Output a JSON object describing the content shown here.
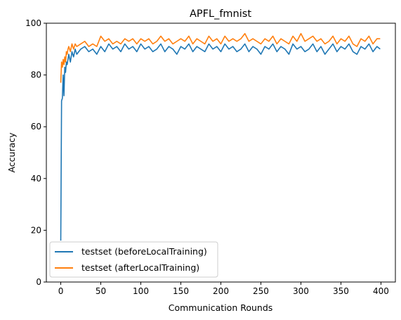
{
  "chart_data": {
    "type": "line",
    "title": "APFL_fmnist",
    "xlabel": "Communication Rounds",
    "ylabel": "Accuracy",
    "xlim": [
      -18,
      418
    ],
    "ylim": [
      0,
      100
    ],
    "x_ticks": [
      0,
      50,
      100,
      150,
      200,
      250,
      300,
      350,
      400
    ],
    "y_ticks": [
      0,
      20,
      40,
      60,
      80,
      100
    ],
    "grid": false,
    "legend_position": "lower-left",
    "series": [
      {
        "name": "testset (beforeLocalTraining)",
        "color": "#1f77b4",
        "x": [
          0,
          1,
          2,
          3,
          4,
          5,
          6,
          7,
          8,
          9,
          10,
          12,
          14,
          16,
          18,
          20,
          25,
          30,
          35,
          40,
          45,
          50,
          55,
          60,
          65,
          70,
          75,
          80,
          85,
          90,
          95,
          100,
          105,
          110,
          115,
          120,
          125,
          130,
          135,
          140,
          145,
          150,
          155,
          160,
          165,
          170,
          175,
          180,
          185,
          190,
          195,
          200,
          205,
          210,
          215,
          220,
          225,
          230,
          235,
          240,
          245,
          250,
          255,
          260,
          265,
          270,
          275,
          280,
          285,
          290,
          295,
          300,
          305,
          310,
          315,
          320,
          325,
          330,
          335,
          340,
          345,
          350,
          355,
          360,
          365,
          370,
          375,
          380,
          385,
          390,
          395,
          399
        ],
        "y": [
          16,
          70,
          71,
          80,
          72,
          83,
          81,
          85,
          84,
          86,
          88,
          85,
          89,
          87,
          90,
          88,
          90,
          91,
          89,
          90,
          88,
          91,
          89,
          92,
          90,
          91,
          89,
          92,
          90,
          91,
          89,
          92,
          90,
          91,
          89,
          90,
          92,
          89,
          91,
          90,
          88,
          91,
          90,
          92,
          89,
          91,
          90,
          89,
          92,
          90,
          91,
          89,
          92,
          90,
          91,
          89,
          90,
          92,
          89,
          91,
          90,
          88,
          91,
          90,
          92,
          89,
          91,
          90,
          88,
          92,
          90,
          91,
          89,
          90,
          92,
          89,
          91,
          88,
          90,
          92,
          89,
          91,
          90,
          92,
          89,
          88,
          91,
          90,
          92,
          89,
          91,
          90
        ]
      },
      {
        "name": "testset (afterLocalTraining)",
        "color": "#ff7f0e",
        "x": [
          0,
          1,
          2,
          3,
          4,
          5,
          6,
          7,
          8,
          9,
          10,
          12,
          14,
          16,
          18,
          20,
          25,
          30,
          35,
          40,
          45,
          50,
          55,
          60,
          65,
          70,
          75,
          80,
          85,
          90,
          95,
          100,
          105,
          110,
          115,
          120,
          125,
          130,
          135,
          140,
          145,
          150,
          155,
          160,
          165,
          170,
          175,
          180,
          185,
          190,
          195,
          200,
          205,
          210,
          215,
          220,
          225,
          230,
          235,
          240,
          245,
          250,
          255,
          260,
          265,
          270,
          275,
          280,
          285,
          290,
          295,
          300,
          305,
          310,
          315,
          320,
          325,
          330,
          335,
          340,
          345,
          350,
          355,
          360,
          365,
          370,
          375,
          380,
          385,
          390,
          395,
          399
        ],
        "y": [
          77,
          85,
          83,
          86,
          84,
          87,
          85,
          89,
          88,
          90,
          91,
          89,
          92,
          90,
          92,
          91,
          92,
          93,
          91,
          92,
          91,
          95,
          93,
          94,
          92,
          93,
          92,
          94,
          93,
          94,
          92,
          94,
          93,
          94,
          92,
          93,
          95,
          93,
          94,
          92,
          93,
          94,
          93,
          95,
          92,
          94,
          93,
          92,
          95,
          93,
          94,
          92,
          95,
          93,
          94,
          93,
          94,
          96,
          93,
          94,
          93,
          92,
          94,
          93,
          95,
          92,
          94,
          93,
          92,
          95,
          93,
          96,
          93,
          94,
          95,
          93,
          94,
          92,
          93,
          95,
          92,
          94,
          93,
          95,
          92,
          91,
          94,
          93,
          95,
          92,
          94,
          94
        ]
      }
    ]
  }
}
